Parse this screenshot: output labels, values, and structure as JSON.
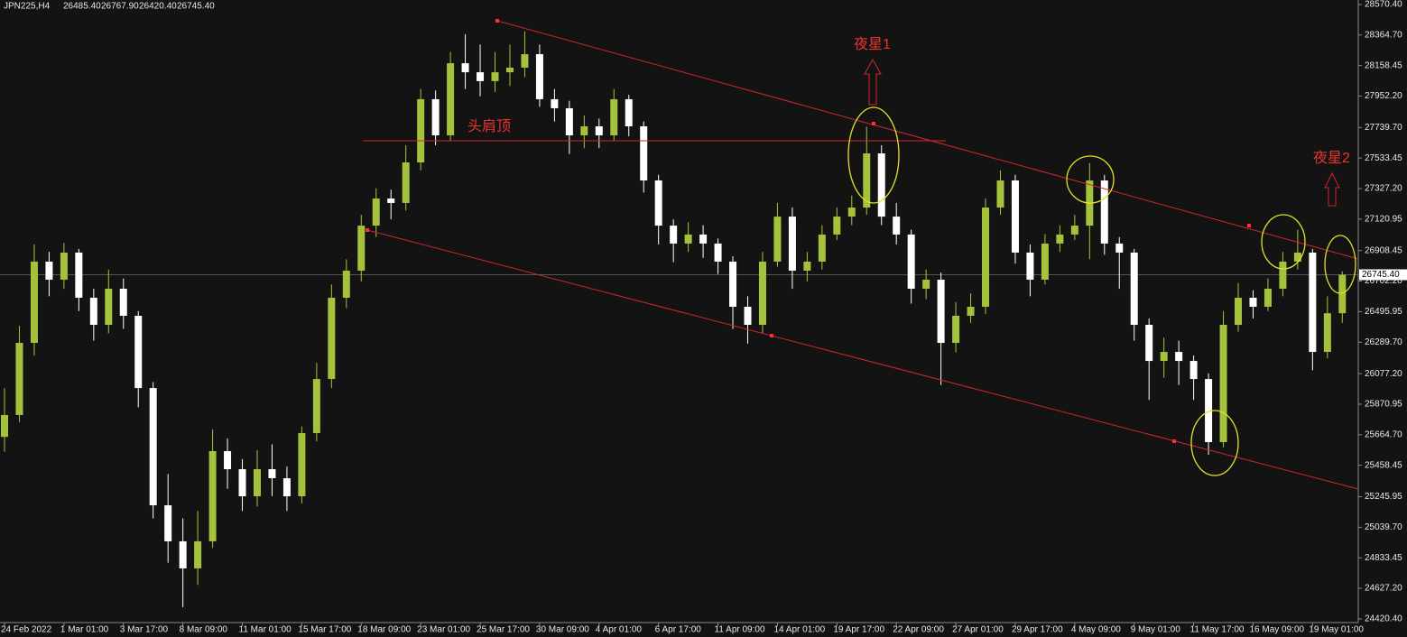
{
  "chart_data": {
    "type": "candlestick",
    "title": "JPN225,H4",
    "header_values": [
      {
        "value": 26485.4,
        "label": "26485.40"
      },
      {
        "value": 26767.9,
        "label": "26767.90"
      },
      {
        "value": 26420.4,
        "label": "26420.40"
      },
      {
        "value": 26745.4,
        "label": "26745.40"
      }
    ],
    "last_price": {
      "value": 26745.4,
      "label": "26745.40"
    },
    "annotations": [
      "头肩顶",
      "夜星1",
      "夜星2"
    ],
    "up_color": "#a4c23c",
    "down_color": "#ffffff",
    "categories": [
      "24 Feb 2022",
      null,
      null,
      null,
      "1 Mar 01:00",
      null,
      null,
      null,
      "3 Mar 17:00",
      null,
      null,
      null,
      "8 Mar 09:00",
      null,
      null,
      null,
      "11 Mar 01:00",
      null,
      null,
      null,
      "15 Mar 17:00",
      null,
      null,
      null,
      "18 Mar 09:00",
      null,
      null,
      null,
      "23 Mar 01:00",
      null,
      null,
      null,
      "25 Mar 17:00",
      null,
      null,
      null,
      "30 Mar 09:00",
      null,
      null,
      null,
      "4 Apr 01:00",
      null,
      null,
      null,
      "6 Apr 17:00",
      null,
      null,
      null,
      "11 Apr 09:00",
      null,
      null,
      null,
      "14 Apr 01:00",
      null,
      null,
      null,
      "19 Apr 17:00",
      null,
      null,
      null,
      "22 Apr 09:00",
      null,
      null,
      null,
      "27 Apr 01:00",
      null,
      null,
      null,
      "29 Apr 17:00",
      null,
      null,
      null,
      "4 May 09:00",
      null,
      null,
      null,
      "9 May 01:00",
      null,
      null,
      null,
      "11 May 17:00",
      null,
      null,
      null,
      "16 May 09:00",
      null,
      null,
      null,
      "19 May 01:00",
      null,
      null
    ],
    "open": [
      25650,
      25798,
      26285,
      26834,
      26712,
      26895,
      26590,
      26407,
      26651,
      26468,
      25980,
      25188,
      24945,
      24762,
      24945,
      25554,
      25432,
      25249,
      25432,
      25371,
      25249,
      25676,
      26041,
      26590,
      26773,
      27077,
      27260,
      27230,
      27504,
      27931,
      27687,
      28174,
      28113,
      28053,
      28113,
      28144,
      28235,
      27931,
      27870,
      27687,
      27748,
      27687,
      27931,
      27748,
      27382,
      27077,
      26956,
      27017,
      26956,
      26834,
      26529,
      26407,
      26834,
      27138,
      26773,
      26834,
      27017,
      27138,
      27199,
      27565,
      27138,
      27017,
      26651,
      26712,
      26285,
      26468,
      26529,
      27199,
      27382,
      26895,
      26712,
      26956,
      27017,
      27077,
      27382,
      26956,
      26895,
      26407,
      26163,
      26224,
      26163,
      26041,
      25615,
      26407,
      26590,
      26529,
      26651,
      26834,
      26895,
      26224,
      26485.4
    ],
    "high": [
      25980,
      26400,
      26950,
      26900,
      26960,
      26920,
      26650,
      26780,
      26720,
      26500,
      26020,
      25400,
      25100,
      25150,
      25700,
      25640,
      25500,
      25560,
      25600,
      25450,
      25720,
      26150,
      26680,
      26850,
      27150,
      27330,
      27320,
      27620,
      28000,
      27990,
      28250,
      28370,
      28300,
      28250,
      28300,
      28390,
      28300,
      28000,
      27920,
      27820,
      27800,
      28000,
      27960,
      27780,
      27420,
      27120,
      27100,
      27080,
      26990,
      26870,
      26600,
      26900,
      27230,
      27200,
      26900,
      27080,
      27200,
      27280,
      27745,
      27620,
      27230,
      27050,
      26780,
      26760,
      26560,
      26620,
      27260,
      27450,
      27420,
      26950,
      27020,
      27080,
      27150,
      27500,
      27420,
      27000,
      26920,
      26450,
      26320,
      26300,
      26200,
      26080,
      26500,
      26690,
      26640,
      26720,
      26900,
      27050,
      26920,
      26600,
      26767.9
    ],
    "low": [
      25550,
      25750,
      26200,
      26600,
      26650,
      26500,
      26300,
      26350,
      26380,
      25850,
      25100,
      24800,
      24500,
      24650,
      24900,
      25300,
      25150,
      25180,
      25250,
      25150,
      25200,
      25620,
      25980,
      26520,
      26700,
      27000,
      27120,
      27180,
      27450,
      27620,
      27650,
      28000,
      27950,
      27980,
      28020,
      28080,
      27880,
      27780,
      27560,
      27600,
      27600,
      27650,
      27680,
      27300,
      26950,
      26830,
      26900,
      26860,
      26750,
      26380,
      26280,
      26350,
      26800,
      26650,
      26700,
      26780,
      26980,
      27080,
      27150,
      27080,
      26950,
      26550,
      26580,
      26000,
      26220,
      26420,
      26480,
      27150,
      26820,
      26600,
      26680,
      26900,
      26980,
      26850,
      26880,
      26650,
      26300,
      25900,
      26050,
      26000,
      25900,
      25530,
      25580,
      26360,
      26450,
      26500,
      26600,
      26780,
      26100,
      26180,
      26420.4
    ],
    "close": [
      25798,
      26285,
      26834,
      26712,
      26895,
      26590,
      26407,
      26651,
      26468,
      25980,
      25188,
      24945,
      24762,
      24945,
      25554,
      25432,
      25249,
      25432,
      25371,
      25249,
      25676,
      26041,
      26590,
      26773,
      27077,
      27260,
      27230,
      27504,
      27931,
      27687,
      28174,
      28113,
      28053,
      28113,
      28144,
      28235,
      27931,
      27870,
      27687,
      27748,
      27687,
      27931,
      27748,
      27382,
      27077,
      26956,
      27017,
      26956,
      26834,
      26529,
      26407,
      26834,
      27138,
      26773,
      26834,
      27017,
      27138,
      27199,
      27565,
      27138,
      27017,
      26651,
      26712,
      26285,
      26468,
      26529,
      27199,
      27382,
      26895,
      26712,
      26956,
      27017,
      27077,
      27382,
      26956,
      26895,
      26407,
      26163,
      26224,
      26163,
      26041,
      25615,
      26407,
      26590,
      26529,
      26651,
      26834,
      26895,
      26224,
      26485.4,
      26745.4
    ],
    "ylim": [
      24396,
      28601
    ],
    "yticks": [
      {
        "value": 28570.4,
        "label": "28570.40"
      },
      {
        "value": 28364.7,
        "label": "28364.70"
      },
      {
        "value": 28158.45,
        "label": "28158.45"
      },
      {
        "value": 27952.2,
        "label": "27952.20"
      },
      {
        "value": 27739.7,
        "label": "27739.70"
      },
      {
        "value": 27533.45,
        "label": "27533.45"
      },
      {
        "value": 27327.2,
        "label": "27327.20"
      },
      {
        "value": 27120.95,
        "label": "27120.95"
      },
      {
        "value": 26908.45,
        "label": "26908.45"
      },
      {
        "value": 26702.2,
        "label": "26702.20"
      },
      {
        "value": 26495.95,
        "label": "26495.95"
      },
      {
        "value": 26289.7,
        "label": "26289.70"
      },
      {
        "value": 26077.2,
        "label": "26077.20"
      },
      {
        "value": 25870.95,
        "label": "25870.95"
      },
      {
        "value": 25664.7,
        "label": "25664.70"
      },
      {
        "value": 25458.45,
        "label": "25458.45"
      },
      {
        "value": 25245.95,
        "label": "25245.95"
      },
      {
        "value": 25039.7,
        "label": "25039.70"
      },
      {
        "value": 24833.45,
        "label": "24833.45"
      },
      {
        "value": 24627.2,
        "label": "24627.20"
      },
      {
        "value": 24420.4,
        "label": "24420.40"
      }
    ],
    "grid": false
  }
}
